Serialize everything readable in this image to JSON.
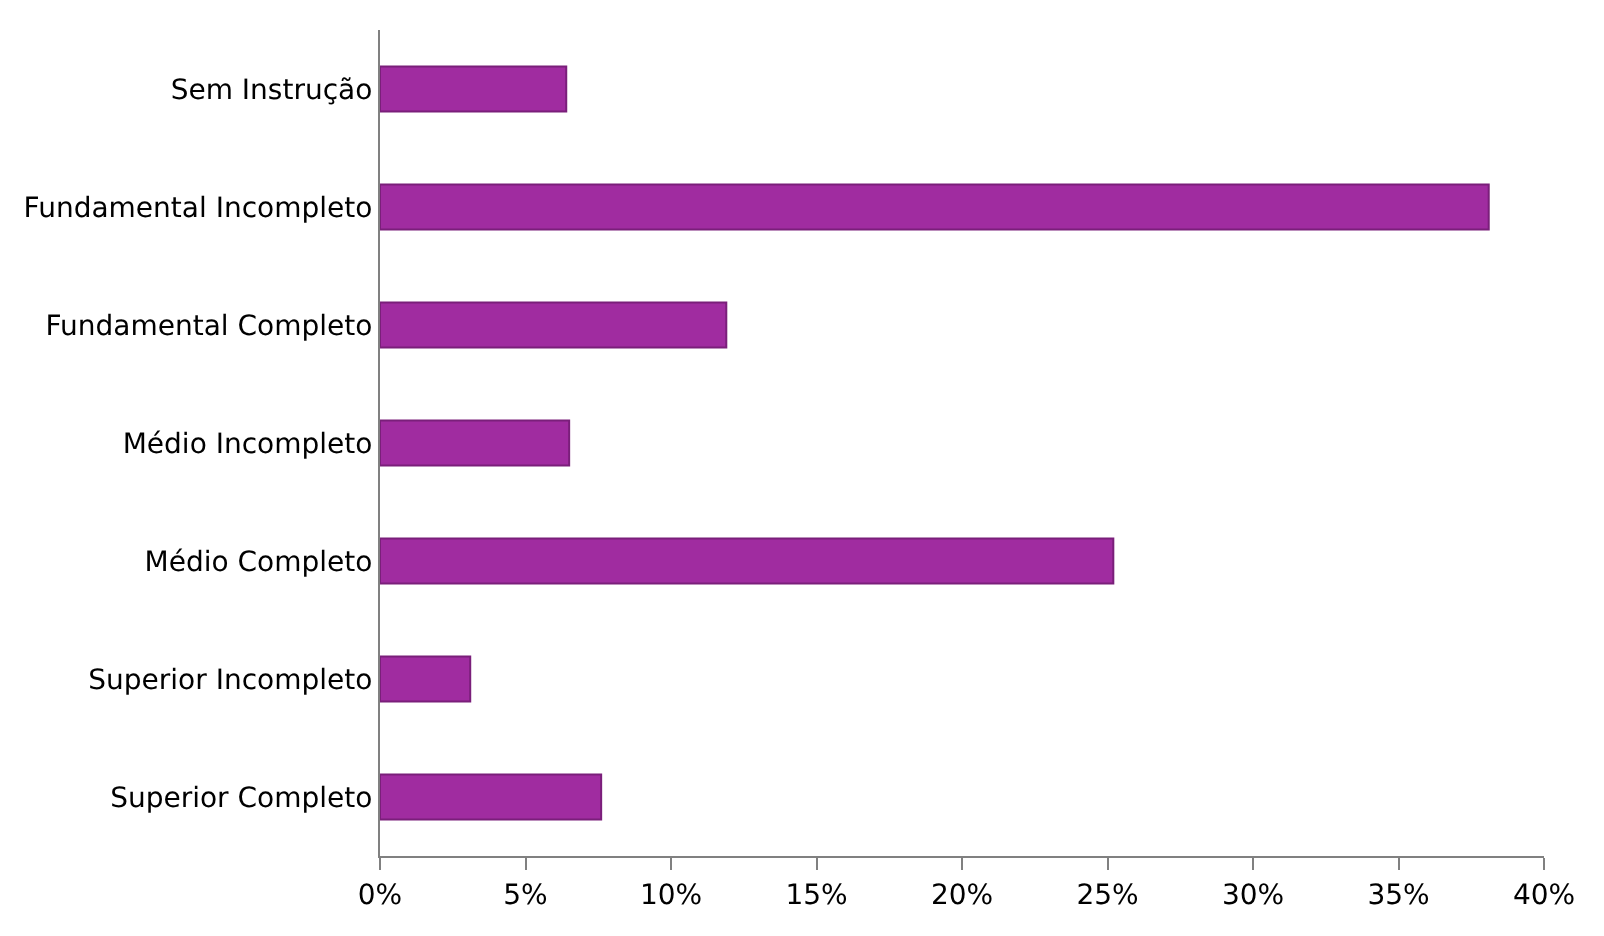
{
  "chart_data": {
    "type": "bar",
    "orientation": "horizontal",
    "categories": [
      "Sem Instrução",
      "Fundamental Incompleto",
      "Fundamental Completo",
      "Médio Incompleto",
      "Médio Completo",
      "Superior Incompleto",
      "Superior Completo"
    ],
    "values": [
      6.4,
      38.1,
      11.9,
      6.5,
      25.2,
      3.1,
      7.6
    ],
    "color": "#a02ca0",
    "xlim": [
      0,
      40
    ],
    "xticks": [
      {
        "value": 0,
        "label": "0%"
      },
      {
        "value": 5,
        "label": "5%"
      },
      {
        "value": 10,
        "label": "10%"
      },
      {
        "value": 15,
        "label": "15%"
      },
      {
        "value": 20,
        "label": "20%"
      },
      {
        "value": 25,
        "label": "25%"
      },
      {
        "value": 30,
        "label": "30%"
      },
      {
        "value": 35,
        "label": "35%"
      },
      {
        "value": 40,
        "label": "40%"
      }
    ]
  }
}
